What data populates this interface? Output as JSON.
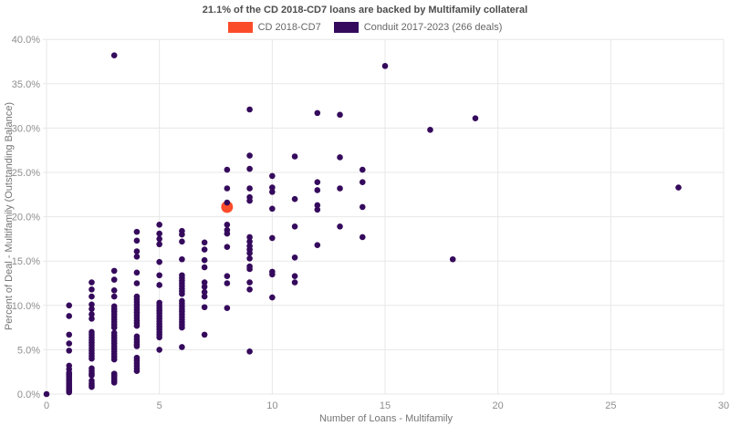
{
  "title": "21.1% of the CD 2018-CD7 loans are backed by Multifamily collateral",
  "legend": [
    {
      "label": "CD 2018-CD7",
      "color": "#fb4c2a"
    },
    {
      "label": "Conduit 2017-2023 (266 deals)",
      "color": "#350a5c"
    }
  ],
  "chart_data": {
    "type": "scatter",
    "title": "21.1% of the CD 2018-CD7 loans are backed by Multifamily collateral",
    "xlabel": "Number of Loans - Multifamily",
    "ylabel": "Percent of Deal - Multifamily (Outstanding Balance)",
    "xlim": [
      0,
      30
    ],
    "ylim": [
      0,
      40
    ],
    "x_ticks": [
      0,
      5,
      10,
      15,
      20,
      25,
      30
    ],
    "y_ticks": [
      0,
      5,
      10,
      15,
      20,
      25,
      30,
      35,
      40
    ],
    "y_tick_suffix": "%",
    "grid": true,
    "grid_color": "#e7e7e7",
    "legend_position": "top",
    "series": [
      {
        "name": "CD 2018-CD7",
        "color": "#fb4c2a",
        "marker_radius": 6.5,
        "points": [
          [
            8,
            21.1
          ]
        ]
      },
      {
        "name": "Conduit 2017-2023 (266 deals)",
        "color": "#350a5c",
        "marker_radius": 3.3,
        "points": [
          [
            0,
            0
          ],
          [
            1,
            10
          ],
          [
            1,
            8.8
          ],
          [
            1,
            6.7
          ],
          [
            1,
            5.7
          ],
          [
            1,
            4.9
          ],
          [
            1,
            3.2
          ],
          [
            1,
            2.8
          ],
          [
            1,
            2.4
          ],
          [
            1,
            2.2
          ],
          [
            1,
            2
          ],
          [
            1,
            1.8
          ],
          [
            1,
            1.6
          ],
          [
            1,
            1.4
          ],
          [
            1,
            1.2
          ],
          [
            1,
            1
          ],
          [
            1,
            0.8
          ],
          [
            1,
            0.6
          ],
          [
            1,
            0.4
          ],
          [
            1,
            0.2
          ],
          [
            2,
            12.6
          ],
          [
            2,
            11.8
          ],
          [
            2,
            11
          ],
          [
            2,
            10.1
          ],
          [
            2,
            9.6
          ],
          [
            2,
            9
          ],
          [
            2,
            8.5
          ],
          [
            2,
            7
          ],
          [
            2,
            6.7
          ],
          [
            2,
            6.4
          ],
          [
            2,
            6.1
          ],
          [
            2,
            5.8
          ],
          [
            2,
            5.5
          ],
          [
            2,
            5.2
          ],
          [
            2,
            4.9
          ],
          [
            2,
            4.6
          ],
          [
            2,
            4.3
          ],
          [
            2,
            4
          ],
          [
            2,
            2.9
          ],
          [
            2,
            2.6
          ],
          [
            2,
            2.3
          ],
          [
            2,
            2.1
          ],
          [
            2,
            1.5
          ],
          [
            2,
            1.2
          ],
          [
            2,
            1
          ],
          [
            2,
            0.8
          ],
          [
            3,
            38.2
          ],
          [
            3,
            13.9
          ],
          [
            3,
            12.9
          ],
          [
            3,
            11.7
          ],
          [
            3,
            11
          ],
          [
            3,
            9.9
          ],
          [
            3,
            9.6
          ],
          [
            3,
            9.3
          ],
          [
            3,
            9
          ],
          [
            3,
            8.7
          ],
          [
            3,
            8.4
          ],
          [
            3,
            8.1
          ],
          [
            3,
            7.8
          ],
          [
            3,
            7.5
          ],
          [
            3,
            6.9
          ],
          [
            3,
            6.6
          ],
          [
            3,
            6.3
          ],
          [
            3,
            6
          ],
          [
            3,
            5.7
          ],
          [
            3,
            5.4
          ],
          [
            3,
            5.1
          ],
          [
            3,
            4.8
          ],
          [
            3,
            4.5
          ],
          [
            3,
            4.2
          ],
          [
            3,
            3.9
          ],
          [
            3,
            2.3
          ],
          [
            3,
            2.1
          ],
          [
            3,
            1.9
          ],
          [
            3,
            1.7
          ],
          [
            3,
            1.5
          ],
          [
            3,
            1.3
          ],
          [
            4,
            18.3
          ],
          [
            4,
            17.3
          ],
          [
            4,
            16.1
          ],
          [
            4,
            15.5
          ],
          [
            4,
            13.7
          ],
          [
            4,
            12.5
          ],
          [
            4,
            11
          ],
          [
            4,
            10.7
          ],
          [
            4,
            10.4
          ],
          [
            4,
            10.1
          ],
          [
            4,
            9.8
          ],
          [
            4,
            9.5
          ],
          [
            4,
            9.2
          ],
          [
            4,
            8.9
          ],
          [
            4,
            8.6
          ],
          [
            4,
            8.3
          ],
          [
            4,
            8
          ],
          [
            4,
            7.7
          ],
          [
            4,
            6.5
          ],
          [
            4,
            6.2
          ],
          [
            4,
            5.9
          ],
          [
            4,
            5.6
          ],
          [
            4,
            5.4
          ],
          [
            4,
            4.1
          ],
          [
            4,
            3.8
          ],
          [
            4,
            3.5
          ],
          [
            4,
            3.2
          ],
          [
            4,
            2.9
          ],
          [
            4,
            2.6
          ],
          [
            5,
            19.1
          ],
          [
            5,
            18.1
          ],
          [
            5,
            17.5
          ],
          [
            5,
            16.9
          ],
          [
            5,
            14.9
          ],
          [
            5,
            13.4
          ],
          [
            5,
            12.3
          ],
          [
            5,
            10.3
          ],
          [
            5,
            10
          ],
          [
            5,
            9.7
          ],
          [
            5,
            9.4
          ],
          [
            5,
            9.1
          ],
          [
            5,
            8.8
          ],
          [
            5,
            8.5
          ],
          [
            5,
            8.2
          ],
          [
            5,
            7.9
          ],
          [
            5,
            7.6
          ],
          [
            5,
            7.3
          ],
          [
            5,
            7
          ],
          [
            5,
            6.7
          ],
          [
            5,
            6.4
          ],
          [
            5,
            5
          ],
          [
            6,
            18.4
          ],
          [
            6,
            18
          ],
          [
            6,
            17.2
          ],
          [
            6,
            15.2
          ],
          [
            6,
            13.4
          ],
          [
            6,
            13.1
          ],
          [
            6,
            12.8
          ],
          [
            6,
            12.5
          ],
          [
            6,
            12.2
          ],
          [
            6,
            11.9
          ],
          [
            6,
            11.6
          ],
          [
            6,
            11.3
          ],
          [
            6,
            10.5
          ],
          [
            6,
            10.2
          ],
          [
            6,
            9.9
          ],
          [
            6,
            9.6
          ],
          [
            6,
            9.3
          ],
          [
            6,
            9
          ],
          [
            6,
            8.7
          ],
          [
            6,
            8.4
          ],
          [
            6,
            8.1
          ],
          [
            6,
            7.8
          ],
          [
            6,
            7.5
          ],
          [
            6,
            5.3
          ],
          [
            7,
            17.1
          ],
          [
            7,
            16.3
          ],
          [
            7,
            15.1
          ],
          [
            7,
            14.3
          ],
          [
            7,
            12.6
          ],
          [
            7,
            12.1
          ],
          [
            7,
            11.5
          ],
          [
            7,
            11
          ],
          [
            7,
            9.8
          ],
          [
            7,
            6.7
          ],
          [
            8,
            25.3
          ],
          [
            8,
            23.2
          ],
          [
            8,
            21.6
          ],
          [
            8,
            19.1
          ],
          [
            8,
            18.5
          ],
          [
            8,
            18.1
          ],
          [
            8,
            16.6
          ],
          [
            8,
            13.3
          ],
          [
            8,
            12.5
          ],
          [
            8,
            9.7
          ],
          [
            9,
            32.1
          ],
          [
            9,
            26.9
          ],
          [
            9,
            25.4
          ],
          [
            9,
            23.2
          ],
          [
            9,
            22.2
          ],
          [
            9,
            21.8
          ],
          [
            9,
            17.7
          ],
          [
            9,
            17.2
          ],
          [
            9,
            16.7
          ],
          [
            9,
            16.3
          ],
          [
            9,
            15.9
          ],
          [
            9,
            15.3
          ],
          [
            9,
            14.4
          ],
          [
            9,
            14.1
          ],
          [
            9,
            12.6
          ],
          [
            9,
            11.8
          ],
          [
            9,
            4.8
          ],
          [
            10,
            24.6
          ],
          [
            10,
            23.3
          ],
          [
            10,
            22.8
          ],
          [
            10,
            20.9
          ],
          [
            10,
            17.6
          ],
          [
            10,
            13.8
          ],
          [
            10,
            13.5
          ],
          [
            10,
            10.9
          ],
          [
            11,
            26.8
          ],
          [
            11,
            22
          ],
          [
            11,
            18.9
          ],
          [
            11,
            15.4
          ],
          [
            11,
            13.3
          ],
          [
            11,
            12.6
          ],
          [
            12,
            31.7
          ],
          [
            12,
            23.9
          ],
          [
            12,
            23
          ],
          [
            12,
            21.3
          ],
          [
            12,
            20.8
          ],
          [
            12,
            16.8
          ],
          [
            13,
            31.5
          ],
          [
            13,
            26.7
          ],
          [
            13,
            23.2
          ],
          [
            13,
            18.9
          ],
          [
            14,
            25.3
          ],
          [
            14,
            23.9
          ],
          [
            14,
            21.1
          ],
          [
            14,
            17.7
          ],
          [
            15,
            37
          ],
          [
            17,
            29.8
          ],
          [
            18,
            15.2
          ],
          [
            19,
            31.1
          ],
          [
            28,
            23.3
          ]
        ]
      }
    ]
  }
}
